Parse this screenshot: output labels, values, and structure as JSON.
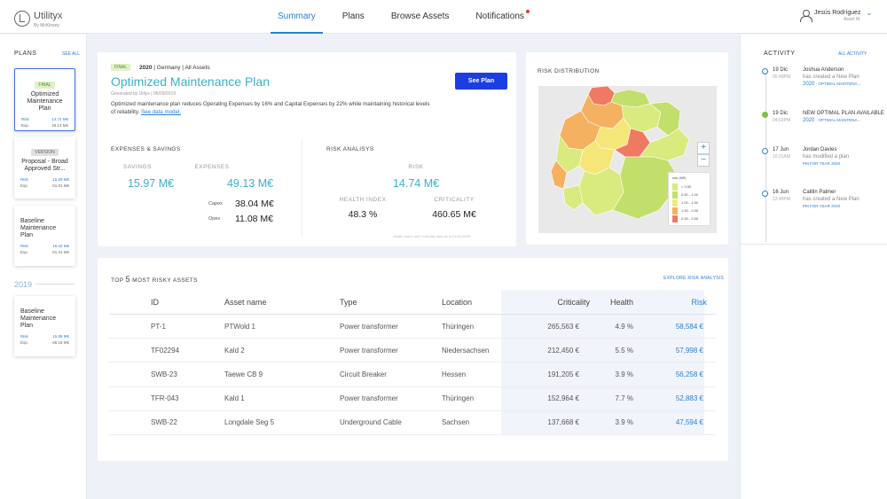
{
  "app": {
    "name": "Utilityx",
    "sub": "By McKinsey"
  },
  "nav": {
    "items": [
      "Summary",
      "Plans",
      "Browse Assets",
      "Notifications"
    ],
    "active": 0
  },
  "user": {
    "name": "Jesús Rodríguez",
    "role": "Asset M."
  },
  "sidebar": {
    "title": "PLANS",
    "see_all": "SEE ALL",
    "cards": [
      {
        "badge": "FINAL",
        "title": "Optimized Maintenance Plan",
        "risk_label": "Risk",
        "risk": "14.74 M€",
        "exp_label": "Exp.",
        "exp": "49.13 M€"
      },
      {
        "badge": "VERSION",
        "title": "Proposal - Broad Approved Str...",
        "risk_label": "Risk",
        "risk": "15.29 M€",
        "exp_label": "Exp.",
        "exp": "51.01 M€"
      },
      {
        "badge": "",
        "title": "Baseline Maintenance Plan",
        "risk_label": "Risk",
        "risk": "15.42 M€",
        "exp_label": "Exp.",
        "exp": "61.41 M€"
      },
      {
        "badge": "",
        "title": "Baseline Maintenance Plan",
        "risk_label": "Risk",
        "risk": "15.85 M€",
        "exp_label": "Exp.",
        "exp": "66.16 M€"
      }
    ],
    "year": "2019"
  },
  "plan": {
    "badge": "FINAL",
    "year": "2020",
    "meta": "| Germany | All Assets",
    "title": "Optimized Maintenance Plan",
    "generated": "Generated by Utilyx | 06/09/2019",
    "description": "Optimized maintenance plan reduces Operating Expenses by 16% and Capital Expenses by 22% while maintaining historical levels of reliability.",
    "link": "See data model.",
    "button": "See Plan",
    "expenses_title": "EXPENSES & SAVINGS",
    "savings_label": "SAVINGS",
    "savings": "15.97 M€",
    "expenses_label": "EXPENSES",
    "expenses": "49.13 M€",
    "capex_label": "Capex",
    "capex": "38.04 M€",
    "opex_label": "Opex",
    "opex": "11.08 M€",
    "risk_title": "RISK ANALISYS",
    "risk_label": "RISK",
    "risk": "14.74 M€",
    "health_label": "HEALTH INDEX",
    "health": "48.3 %",
    "criticality_label": "CRITICALITY",
    "criticality": "460.65 M€",
    "note": "Health Index and Criticality data as in 01/01/2020"
  },
  "risk_map": {
    "title": "RISK DISTRIBUTION",
    "zoom_in": "+",
    "zoom_out": "−",
    "legend_title": "risk (M€)",
    "legend": [
      {
        "label": "< 0.50",
        "color": "#d9ea7e"
      },
      {
        "label": "0.50 - 1.00",
        "color": "#c3df6b"
      },
      {
        "label": "1.00 - 1.50",
        "color": "#f6e67a"
      },
      {
        "label": "1.50 - 2.00",
        "color": "#f4b15f"
      },
      {
        "label": "2.00 - 2.50",
        "color": "#ef7a62"
      }
    ]
  },
  "assets": {
    "title_pre": "TOP ",
    "title_num": "5",
    "title_post": " MOST RISKY ASSETS",
    "explore": "EXPLORE RISK ANALYSIS",
    "columns": [
      "ID",
      "Asset name",
      "Type",
      "Location",
      "Criticality",
      "Health",
      "Risk"
    ],
    "rows": [
      [
        "PT-1",
        "PTWold 1",
        "Power transformer",
        "Thüringen",
        "265,563 €",
        "4.9 %",
        "58,584 €"
      ],
      [
        "TF02294",
        "Kald 2",
        "Power transformer",
        "Niedersachsen",
        "212,450 €",
        "5.5 %",
        "57,998 €"
      ],
      [
        "SWB-23",
        "Taewe CB 9",
        "Circuit Breaker",
        "Hessen",
        "191,205 €",
        "3.9 %",
        "56,258 €"
      ],
      [
        "TFR-043",
        "Kald 1",
        "Power transformer",
        "Thüringen",
        "152,964 €",
        "7.7 %",
        "52,883 €"
      ],
      [
        "SWB-22",
        "Longdale Seg 5",
        "Underground Cable",
        "Sachsen",
        "137,668 €",
        "3.9 %",
        "47,594 €"
      ]
    ]
  },
  "activity": {
    "title": "ACTIVITY",
    "all": "ALL ACTIVITY",
    "items": [
      {
        "date": "19 Dic",
        "time": "05:49PM",
        "who": "Joshua Anderson",
        "text": "has created a New Plan",
        "link": "2020",
        "link_small": " · OPTIMAL MAINTENA..."
      },
      {
        "date": "19 Dic",
        "time": "04:02PM",
        "who": "NEW OPTIMAL PLAN AVAILABLE",
        "text": "",
        "link": "2020",
        "link_small": " · OPTIMAL MAINTENA..."
      },
      {
        "date": "17 Jun",
        "time": "10:31AM",
        "who": "Jordan Davies",
        "text": "has modified a plan",
        "link": "",
        "link_small": "PM FOR YEAR 2020"
      },
      {
        "date": "16 Jun",
        "time": "12:49PM",
        "who": "Caitlin Palmer",
        "text": "has created a New Plan",
        "link": "",
        "link_small": "PM FOR YEAR 2020"
      }
    ]
  }
}
